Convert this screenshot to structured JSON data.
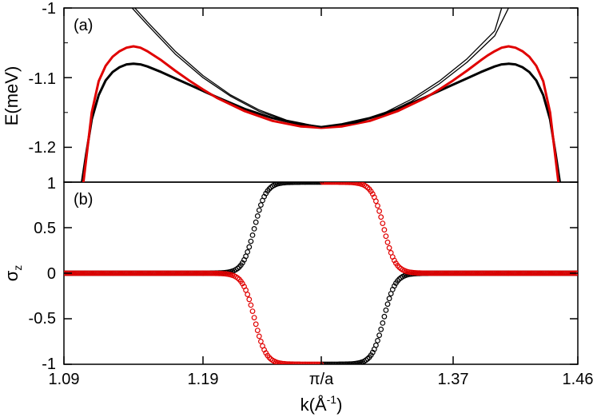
{
  "chart_data": [
    {
      "type": "line",
      "panel": "top",
      "panel_label": "(a)",
      "ylabel": "E(meV)",
      "xlabel": "",
      "xlim": [
        1.09,
        1.46
      ],
      "ylim": [
        -1.25,
        -1.0
      ],
      "yticks": [
        -1.0,
        -1.1,
        -1.2
      ],
      "ytick_labels": [
        "-1",
        "-1.1",
        "-1.2"
      ],
      "xticks": [
        1.09,
        1.19,
        1.275,
        1.37,
        1.46
      ],
      "grid": false,
      "colors": {
        "black": "#000000",
        "red": "#e00000"
      },
      "series": [
        {
          "color": "#000000",
          "style": "thick",
          "x": [
            1.103,
            1.106,
            1.11,
            1.115,
            1.12,
            1.125,
            1.13,
            1.135,
            1.14,
            1.145,
            1.15,
            1.16,
            1.17,
            1.18,
            1.19,
            1.2,
            1.22,
            1.24,
            1.26,
            1.275,
            1.29,
            1.31,
            1.33,
            1.35,
            1.36,
            1.37,
            1.38,
            1.39,
            1.395,
            1.4,
            1.405,
            1.41,
            1.415,
            1.42,
            1.425,
            1.43,
            1.435,
            1.44,
            1.444,
            1.447
          ],
          "y": [
            -1.25,
            -1.21,
            -1.16,
            -1.125,
            -1.104,
            -1.092,
            -1.085,
            -1.081,
            -1.08,
            -1.081,
            -1.084,
            -1.092,
            -1.101,
            -1.11,
            -1.119,
            -1.128,
            -1.145,
            -1.158,
            -1.167,
            -1.171,
            -1.167,
            -1.158,
            -1.145,
            -1.128,
            -1.119,
            -1.11,
            -1.101,
            -1.092,
            -1.088,
            -1.084,
            -1.081,
            -1.08,
            -1.081,
            -1.085,
            -1.092,
            -1.104,
            -1.125,
            -1.16,
            -1.21,
            -1.25
          ]
        },
        {
          "color": "#e00000",
          "style": "thick",
          "x": [
            1.104,
            1.107,
            1.11,
            1.115,
            1.12,
            1.125,
            1.13,
            1.135,
            1.14,
            1.145,
            1.15,
            1.16,
            1.17,
            1.18,
            1.19,
            1.2,
            1.22,
            1.24,
            1.26,
            1.275,
            1.29,
            1.31,
            1.33,
            1.35,
            1.36,
            1.37,
            1.38,
            1.39,
            1.395,
            1.4,
            1.405,
            1.41,
            1.415,
            1.42,
            1.425,
            1.43,
            1.435,
            1.44,
            1.443,
            1.446
          ],
          "y": [
            -1.25,
            -1.2,
            -1.15,
            -1.105,
            -1.083,
            -1.07,
            -1.062,
            -1.057,
            -1.055,
            -1.057,
            -1.062,
            -1.075,
            -1.09,
            -1.104,
            -1.117,
            -1.129,
            -1.148,
            -1.162,
            -1.17,
            -1.172,
            -1.17,
            -1.162,
            -1.148,
            -1.129,
            -1.117,
            -1.104,
            -1.09,
            -1.075,
            -1.068,
            -1.062,
            -1.057,
            -1.055,
            -1.057,
            -1.062,
            -1.07,
            -1.083,
            -1.105,
            -1.15,
            -1.2,
            -1.25
          ]
        },
        {
          "color": "#000000",
          "style": "thin",
          "x": [
            1.139,
            1.15,
            1.17,
            1.19,
            1.21,
            1.23,
            1.25,
            1.275,
            1.3,
            1.32,
            1.34,
            1.36,
            1.38,
            1.4,
            1.405
          ],
          "y": [
            -1.0,
            -1.024,
            -1.066,
            -1.1,
            -1.127,
            -1.148,
            -1.162,
            -1.171,
            -1.164,
            -1.151,
            -1.131,
            -1.105,
            -1.073,
            -1.033,
            -1.0
          ]
        },
        {
          "color": "#000000",
          "style": "thin",
          "x": [
            1.141,
            1.15,
            1.17,
            1.19,
            1.21,
            1.23,
            1.25,
            1.275,
            1.3,
            1.32,
            1.34,
            1.36,
            1.38,
            1.4,
            1.41
          ],
          "y": [
            -1.0,
            -1.02,
            -1.062,
            -1.097,
            -1.125,
            -1.146,
            -1.161,
            -1.171,
            -1.165,
            -1.153,
            -1.134,
            -1.109,
            -1.078,
            -1.04,
            -1.0
          ]
        }
      ]
    },
    {
      "type": "scatter",
      "panel": "bottom",
      "panel_label": "(b)",
      "ylabel": "σz",
      "xlabel": "k(Å-1)",
      "xlim": [
        1.09,
        1.46
      ],
      "ylim": [
        -1.0,
        1.0
      ],
      "yticks": [
        1.0,
        0.5,
        0.0,
        -0.5,
        -1.0
      ],
      "ytick_labels": [
        "1",
        "0.5",
        "0",
        "-0.5",
        "-1"
      ],
      "xticks": [
        1.09,
        1.19,
        1.275,
        1.37,
        1.46
      ],
      "xtick_labels": [
        "1.09",
        "1.19",
        "π/a",
        "1.37",
        "1.46"
      ],
      "grid": false,
      "series": [
        {
          "color": "#000000",
          "marker": "open-circle",
          "description_points": "sigma_z rising from 0 to 1 near k=1.23, then 1 until pi/a, then -1 falling back to 0 near k=1.32",
          "transition_center_left": 1.227,
          "transition_center_right": 1.32,
          "sign_left": 1,
          "sign_right": -1
        },
        {
          "color": "#e00000",
          "marker": "open-circle",
          "description_points": "sigma_z falling from 0 to -1 near k=1.23, -1 until pi/a, then 1 falling back to 0 near k=1.32",
          "transition_center_left": 1.227,
          "transition_center_right": 1.32,
          "sign_left": -1,
          "sign_right": 1
        }
      ]
    }
  ]
}
